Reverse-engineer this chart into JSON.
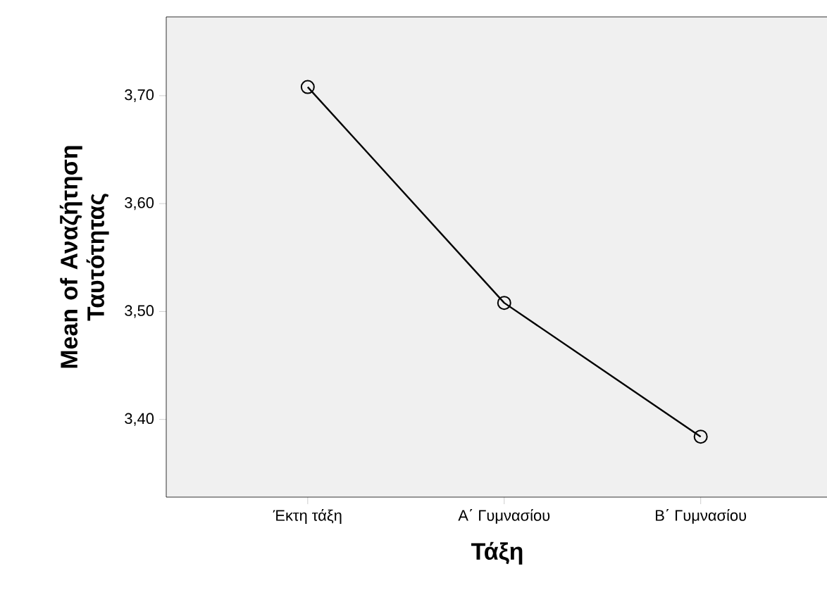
{
  "chart_data": {
    "type": "line",
    "xlabel": "Τάξη",
    "ylabel": "Mean of Αναζήτηση Ταυτότητας",
    "categories": [
      "Έκτη τάξη",
      "Α΄ Γυμνασίου",
      "Β΄ Γυμνασίου"
    ],
    "values": [
      3.708,
      3.508,
      3.384
    ],
    "color": "#000000",
    "marker": "circle",
    "line_style": "solid",
    "grid": false,
    "ylim": [
      3.328,
      3.773
    ],
    "yticks": [
      {
        "value": 3.4,
        "label": "3,40"
      },
      {
        "value": 3.5,
        "label": "3,50"
      },
      {
        "value": 3.6,
        "label": "3,60"
      },
      {
        "value": 3.7,
        "label": "3,70"
      }
    ]
  }
}
